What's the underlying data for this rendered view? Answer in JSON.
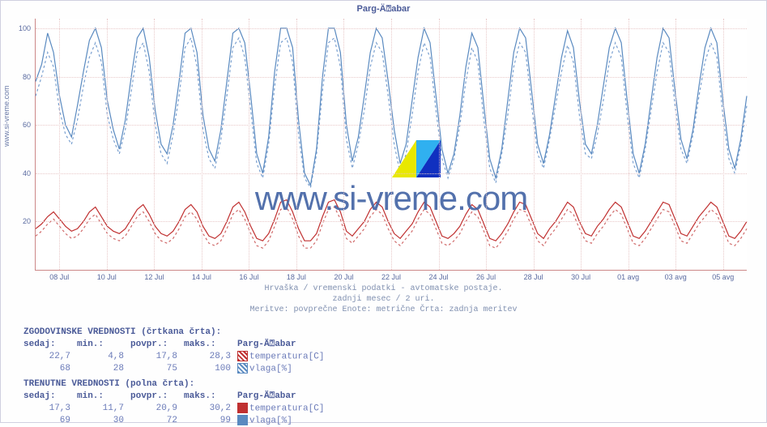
{
  "title": "Parg-Ä⍰abar",
  "side_label": "www.si-vreme.com",
  "watermark_text": "www.si-vreme.com",
  "chart": {
    "type": "line",
    "ylim": [
      0,
      104
    ],
    "yticks": [
      20,
      40,
      60,
      80,
      100
    ],
    "xticks": [
      "08 Jul",
      "10 Jul",
      "12 Jul",
      "14 Jul",
      "16 Jul",
      "18 Jul",
      "20 Jul",
      "22 Jul",
      "24 Jul",
      "26 Jul",
      "28 Jul",
      "30 Jul",
      "01 avg",
      "03 avg",
      "05 avg"
    ],
    "background_color": "#ffffff",
    "grid_color": "#e8c8c8",
    "axis_color": "#c88888",
    "colors": {
      "humidity_solid": "#5a8ac0",
      "humidity_dash": "#7aa0d0",
      "temp_solid": "#c03030",
      "temp_dash": "#d06a6a"
    },
    "line_width": 1.2,
    "series": {
      "humidity_solid": [
        78,
        85,
        98,
        90,
        72,
        60,
        55,
        68,
        82,
        95,
        100,
        92,
        70,
        58,
        50,
        62,
        80,
        96,
        100,
        88,
        66,
        52,
        48,
        60,
        78,
        98,
        100,
        90,
        64,
        50,
        45,
        58,
        78,
        98,
        100,
        94,
        72,
        48,
        40,
        55,
        82,
        100,
        100,
        92,
        62,
        40,
        35,
        50,
        80,
        100,
        100,
        90,
        60,
        45,
        55,
        72,
        90,
        100,
        96,
        78,
        58,
        44,
        52,
        70,
        88,
        100,
        94,
        72,
        50,
        40,
        48,
        64,
        84,
        98,
        92,
        68,
        46,
        38,
        50,
        70,
        90,
        100,
        96,
        74,
        52,
        44,
        56,
        72,
        88,
        99,
        92,
        70,
        52,
        48,
        60,
        76,
        92,
        100,
        94,
        70,
        48,
        40,
        52,
        70,
        88,
        100,
        96,
        74,
        54,
        46,
        58,
        76,
        92,
        100,
        94,
        70,
        50,
        42,
        54,
        72
      ],
      "humidity_dash": [
        72,
        80,
        90,
        84,
        66,
        56,
        52,
        62,
        76,
        88,
        94,
        86,
        64,
        54,
        48,
        58,
        74,
        90,
        94,
        82,
        60,
        48,
        44,
        56,
        72,
        92,
        96,
        84,
        58,
        46,
        42,
        54,
        72,
        92,
        96,
        88,
        66,
        44,
        38,
        52,
        76,
        94,
        96,
        86,
        56,
        38,
        34,
        48,
        74,
        94,
        96,
        84,
        54,
        42,
        52,
        66,
        84,
        94,
        90,
        72,
        52,
        40,
        48,
        64,
        82,
        94,
        88,
        66,
        46,
        38,
        46,
        60,
        78,
        92,
        86,
        62,
        42,
        36,
        48,
        64,
        84,
        94,
        90,
        68,
        48,
        42,
        54,
        68,
        82,
        93,
        86,
        64,
        48,
        46,
        56,
        70,
        86,
        94,
        88,
        64,
        44,
        38,
        50,
        66,
        82,
        94,
        90,
        68,
        50,
        44,
        56,
        72,
        86,
        94,
        88,
        64,
        46,
        40,
        52,
        68
      ],
      "temp_solid": [
        17,
        19,
        22,
        24,
        21,
        18,
        16,
        17,
        20,
        24,
        26,
        22,
        18,
        16,
        15,
        17,
        21,
        25,
        27,
        23,
        18,
        15,
        14,
        16,
        20,
        25,
        27,
        24,
        18,
        14,
        13,
        15,
        20,
        26,
        28,
        24,
        18,
        13,
        12,
        15,
        21,
        28,
        29,
        24,
        17,
        12,
        12,
        15,
        22,
        28,
        29,
        24,
        16,
        14,
        17,
        20,
        25,
        28,
        26,
        20,
        15,
        13,
        16,
        19,
        24,
        28,
        26,
        20,
        14,
        13,
        15,
        18,
        23,
        27,
        25,
        19,
        13,
        12,
        15,
        19,
        24,
        28,
        27,
        21,
        15,
        13,
        17,
        20,
        24,
        28,
        26,
        20,
        15,
        14,
        18,
        21,
        25,
        28,
        26,
        20,
        14,
        13,
        16,
        20,
        24,
        28,
        27,
        21,
        15,
        14,
        18,
        22,
        25,
        28,
        26,
        20,
        14,
        13,
        16,
        20
      ],
      "temp_dash": [
        14,
        16,
        19,
        21,
        18,
        15,
        13,
        14,
        17,
        21,
        23,
        19,
        15,
        13,
        12,
        14,
        18,
        22,
        24,
        20,
        15,
        12,
        11,
        13,
        17,
        22,
        24,
        21,
        15,
        11,
        10,
        12,
        17,
        23,
        25,
        21,
        15,
        10,
        9,
        12,
        18,
        25,
        26,
        21,
        14,
        9,
        9,
        12,
        19,
        25,
        26,
        21,
        13,
        11,
        14,
        17,
        22,
        25,
        23,
        17,
        12,
        10,
        13,
        16,
        21,
        25,
        23,
        17,
        11,
        10,
        12,
        15,
        20,
        24,
        22,
        16,
        10,
        9,
        12,
        16,
        21,
        25,
        24,
        18,
        12,
        10,
        14,
        17,
        21,
        25,
        23,
        17,
        12,
        11,
        15,
        18,
        22,
        25,
        23,
        17,
        11,
        10,
        13,
        17,
        21,
        25,
        24,
        18,
        12,
        11,
        15,
        19,
        22,
        25,
        23,
        17,
        11,
        10,
        13,
        17
      ]
    }
  },
  "captions": {
    "line1": "Hrvaška / vremenski podatki - avtomatske postaje.",
    "line2": "zadnji mesec / 2 uri.",
    "line3": "Meritve: povprečne  Enote: metrične  Črta: zadnja meritev"
  },
  "legend": {
    "hist_header": "ZGODOVINSKE VREDNOSTI (črtkana črta):",
    "curr_header": "TRENUTNE VREDNOSTI (polna črta):",
    "cols": {
      "now": "sedaj:",
      "min": "min.:",
      "avg": "povpr.:",
      "max": "maks.:"
    },
    "station": "Parg-Ä⍰abar",
    "hist": {
      "temp": {
        "now": "22,7",
        "min": "4,8",
        "avg": "17,8",
        "max": "28,3",
        "label": "temperatura[C]",
        "swatch": "#c03030",
        "dash": true
      },
      "hum": {
        "now": "68",
        "min": "28",
        "avg": "75",
        "max": "100",
        "label": "vlaga[%]",
        "swatch": "#5a8ac0",
        "dash": true
      }
    },
    "curr": {
      "temp": {
        "now": "17,3",
        "min": "11,7",
        "avg": "20,9",
        "max": "30,2",
        "label": "temperatura[C]",
        "swatch": "#c03030",
        "dash": false
      },
      "hum": {
        "now": "69",
        "min": "30",
        "avg": "72",
        "max": "99",
        "label": "vlaga[%]",
        "swatch": "#5a8ac0",
        "dash": false
      }
    }
  }
}
